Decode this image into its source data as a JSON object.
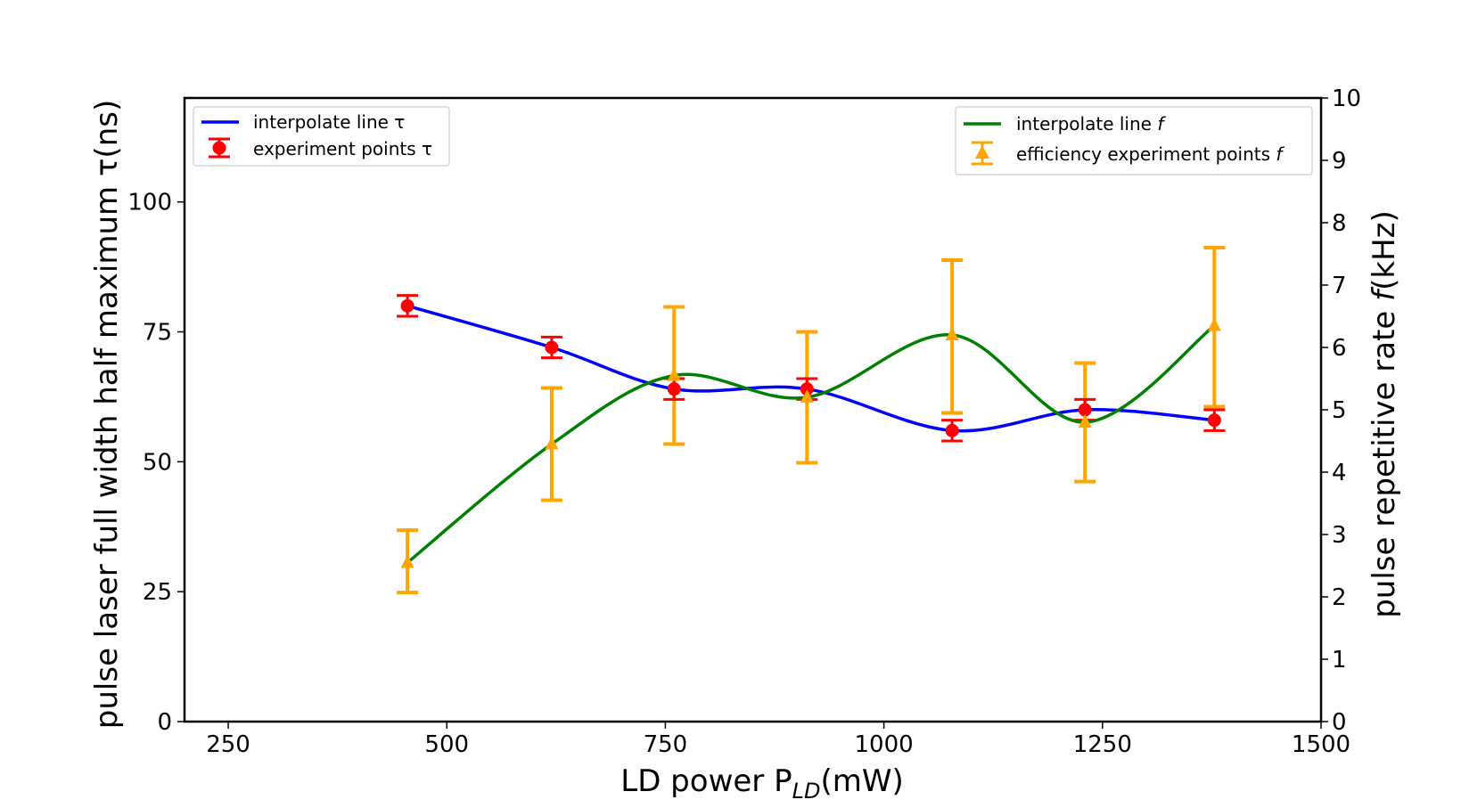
{
  "chart_data": {
    "type": "line",
    "xlabel": {
      "prefix": "LD power P",
      "subscript": "LD",
      "suffix": "(mW)"
    },
    "ylabel_left": "pulse laser full width half maximum τ(ns)",
    "ylabel_right": {
      "prefix": "pulse repetitive rate ",
      "italic": "f",
      "suffix": "(kHz)"
    },
    "xlim": [
      200,
      1500
    ],
    "ylim_left": [
      0,
      120
    ],
    "ylim_right": [
      0,
      10
    ],
    "x_ticks": [
      250,
      500,
      750,
      1000,
      1250,
      1500
    ],
    "y_left_ticks": [
      0,
      25,
      50,
      75,
      100
    ],
    "y_right_ticks": [
      0,
      1,
      2,
      3,
      4,
      5,
      6,
      7,
      8,
      9,
      10
    ],
    "grid": false,
    "series": [
      {
        "name": "interpolate line τ",
        "kind": "line",
        "axis": "left",
        "color": "#0000ff",
        "x": [
          455,
          620,
          760,
          912,
          1078,
          1230,
          1378
        ],
        "y": [
          80,
          72,
          64,
          64,
          56,
          60,
          58
        ]
      },
      {
        "name": "experiment points τ",
        "kind": "errorbar",
        "axis": "left",
        "color": "#ff0000",
        "marker": "circle",
        "x": [
          455,
          620,
          760,
          912,
          1078,
          1230,
          1378
        ],
        "y": [
          80,
          72,
          64,
          64,
          56,
          60,
          58
        ],
        "err": [
          2,
          2,
          2,
          2,
          2,
          2,
          2
        ]
      },
      {
        "name": "interpolate line f",
        "kind": "line",
        "axis": "right",
        "color": "#008000",
        "x": [
          455,
          620,
          760,
          912,
          1078,
          1230,
          1378
        ],
        "y": [
          2.55,
          4.45,
          5.55,
          5.2,
          6.2,
          4.8,
          6.35
        ]
      },
      {
        "name": "efficiency experiment points f",
        "kind": "errorbar",
        "axis": "right",
        "color": "#ffa500",
        "marker": "triangle",
        "x": [
          455,
          620,
          760,
          912,
          1078,
          1230,
          1378
        ],
        "y": [
          2.55,
          4.45,
          5.55,
          5.2,
          6.2,
          4.8,
          6.35
        ],
        "err_low": [
          0.48,
          0.9,
          1.1,
          1.05,
          1.25,
          0.95,
          1.3
        ],
        "err_high": [
          0.52,
          0.9,
          1.1,
          1.05,
          1.2,
          0.95,
          1.25
        ]
      }
    ],
    "legend_left": {
      "placement": "upper-left",
      "line_label": "interpolate line τ",
      "points_label": "experiment points τ"
    },
    "legend_right": {
      "placement": "upper-right",
      "line_label_prefix": "interpolate line ",
      "points_label_prefix": " efficiency experiment points ",
      "italic": "f"
    }
  }
}
